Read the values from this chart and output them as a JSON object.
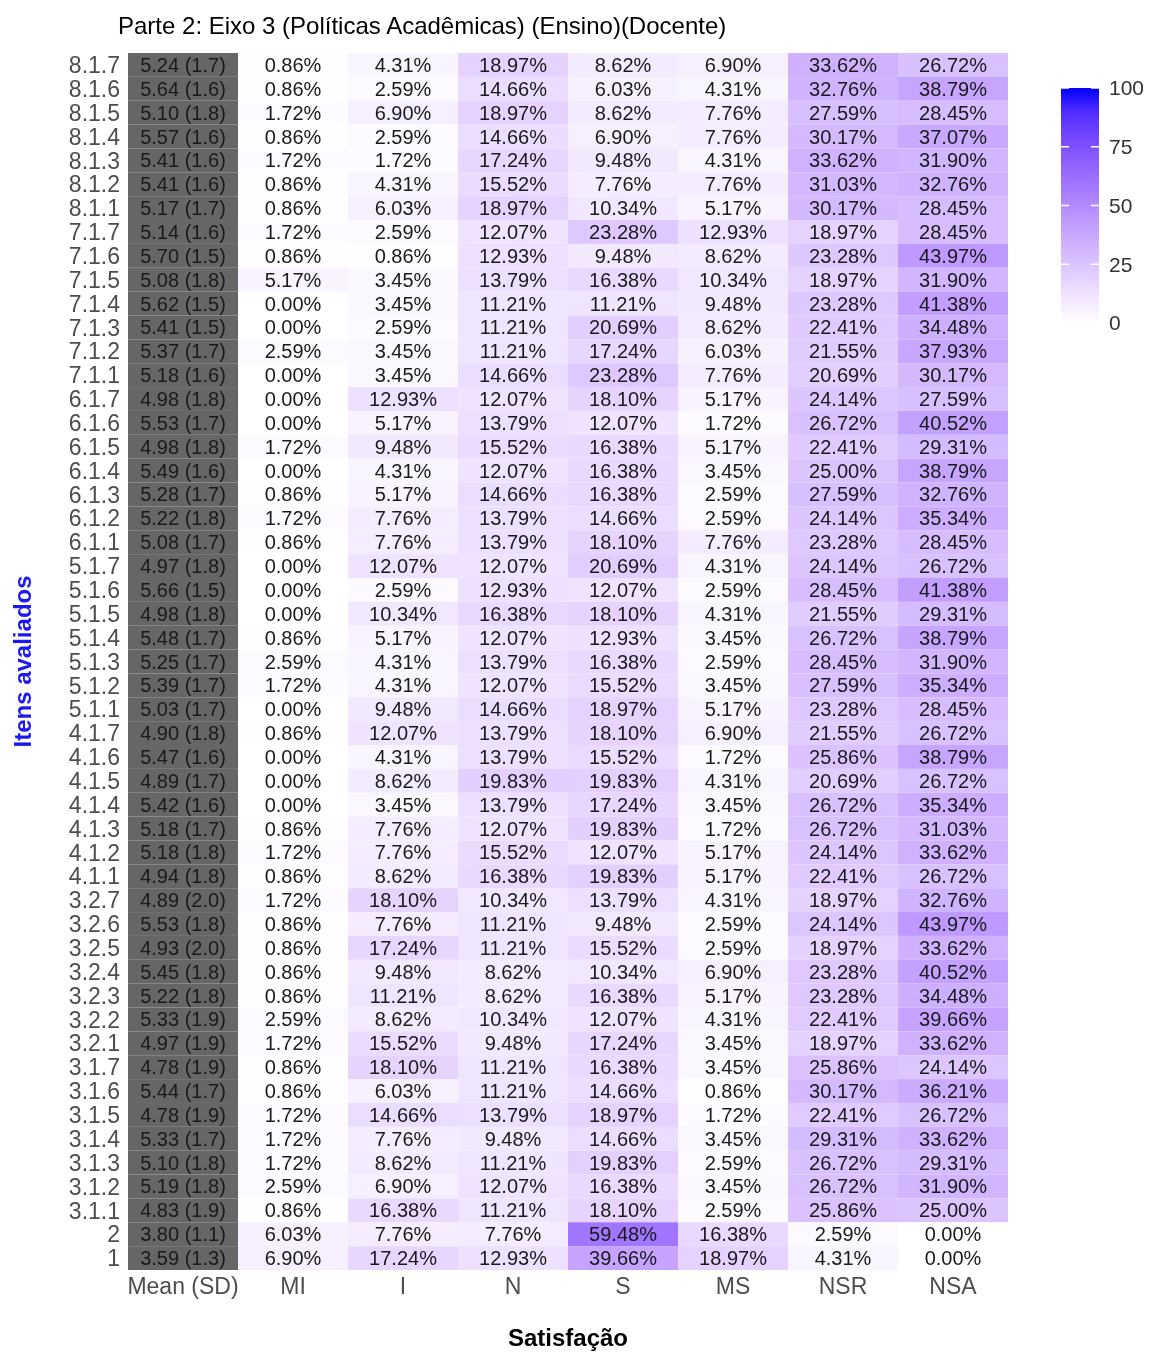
{
  "chart_data": {
    "type": "heatmap",
    "title": "Parte 2: Eixo 3 (Políticas Acadêmicas) (Ensino)(Docente)",
    "xlabel": "Satisfação",
    "ylabel": "Itens avaliados",
    "categories": [
      "Mean (SD)",
      "MI",
      "I",
      "N",
      "S",
      "MS",
      "NSR",
      "NSA"
    ],
    "y_categories": [
      "8.1.7",
      "8.1.6",
      "8.1.5",
      "8.1.4",
      "8.1.3",
      "8.1.2",
      "8.1.1",
      "7.1.7",
      "7.1.6",
      "7.1.5",
      "7.1.4",
      "7.1.3",
      "7.1.2",
      "7.1.1",
      "6.1.7",
      "6.1.6",
      "6.1.5",
      "6.1.4",
      "6.1.3",
      "6.1.2",
      "6.1.1",
      "5.1.7",
      "5.1.6",
      "5.1.5",
      "5.1.4",
      "5.1.3",
      "5.1.2",
      "5.1.1",
      "4.1.7",
      "4.1.6",
      "4.1.5",
      "4.1.4",
      "4.1.3",
      "4.1.2",
      "4.1.1",
      "3.2.7",
      "3.2.6",
      "3.2.5",
      "3.2.4",
      "3.2.3",
      "3.2.2",
      "3.2.1",
      "3.1.7",
      "3.1.6",
      "3.1.5",
      "3.1.4",
      "3.1.3",
      "3.1.2",
      "3.1.1",
      "2",
      "1"
    ],
    "cells": [
      [
        null,
        0.86,
        4.31,
        18.97,
        8.62,
        6.9,
        33.62,
        26.72
      ],
      [
        null,
        0.86,
        2.59,
        14.66,
        6.03,
        4.31,
        32.76,
        38.79
      ],
      [
        null,
        1.72,
        6.9,
        18.97,
        8.62,
        7.76,
        27.59,
        28.45
      ],
      [
        null,
        0.86,
        2.59,
        14.66,
        6.9,
        7.76,
        30.17,
        37.07
      ],
      [
        null,
        1.72,
        1.72,
        17.24,
        9.48,
        4.31,
        33.62,
        31.9
      ],
      [
        null,
        0.86,
        4.31,
        15.52,
        7.76,
        7.76,
        31.03,
        32.76
      ],
      [
        null,
        0.86,
        6.03,
        18.97,
        10.34,
        5.17,
        30.17,
        28.45
      ],
      [
        null,
        1.72,
        2.59,
        12.07,
        23.28,
        12.93,
        18.97,
        28.45
      ],
      [
        null,
        0.86,
        0.86,
        12.93,
        9.48,
        8.62,
        23.28,
        43.97
      ],
      [
        null,
        5.17,
        3.45,
        13.79,
        16.38,
        10.34,
        18.97,
        31.9
      ],
      [
        null,
        0.0,
        3.45,
        11.21,
        11.21,
        9.48,
        23.28,
        41.38
      ],
      [
        null,
        0.0,
        2.59,
        11.21,
        20.69,
        8.62,
        22.41,
        34.48
      ],
      [
        null,
        2.59,
        3.45,
        11.21,
        17.24,
        6.03,
        21.55,
        37.93
      ],
      [
        null,
        0.0,
        3.45,
        14.66,
        23.28,
        7.76,
        20.69,
        30.17
      ],
      [
        null,
        0.0,
        12.93,
        12.07,
        18.1,
        5.17,
        24.14,
        27.59
      ],
      [
        null,
        0.0,
        5.17,
        13.79,
        12.07,
        1.72,
        26.72,
        40.52
      ],
      [
        null,
        1.72,
        9.48,
        15.52,
        16.38,
        5.17,
        22.41,
        29.31
      ],
      [
        null,
        0.0,
        4.31,
        12.07,
        16.38,
        3.45,
        25.0,
        38.79
      ],
      [
        null,
        0.86,
        5.17,
        14.66,
        16.38,
        2.59,
        27.59,
        32.76
      ],
      [
        null,
        1.72,
        7.76,
        13.79,
        14.66,
        2.59,
        24.14,
        35.34
      ],
      [
        null,
        0.86,
        7.76,
        13.79,
        18.1,
        7.76,
        23.28,
        28.45
      ],
      [
        null,
        0.0,
        12.07,
        12.07,
        20.69,
        4.31,
        24.14,
        26.72
      ],
      [
        null,
        0.0,
        2.59,
        12.93,
        12.07,
        2.59,
        28.45,
        41.38
      ],
      [
        null,
        0.0,
        10.34,
        16.38,
        18.1,
        4.31,
        21.55,
        29.31
      ],
      [
        null,
        0.86,
        5.17,
        12.07,
        12.93,
        3.45,
        26.72,
        38.79
      ],
      [
        null,
        2.59,
        4.31,
        13.79,
        16.38,
        2.59,
        28.45,
        31.9
      ],
      [
        null,
        1.72,
        4.31,
        12.07,
        15.52,
        3.45,
        27.59,
        35.34
      ],
      [
        null,
        0.0,
        9.48,
        14.66,
        18.97,
        5.17,
        23.28,
        28.45
      ],
      [
        null,
        0.86,
        12.07,
        13.79,
        18.1,
        6.9,
        21.55,
        26.72
      ],
      [
        null,
        0.0,
        4.31,
        13.79,
        15.52,
        1.72,
        25.86,
        38.79
      ],
      [
        null,
        0.0,
        8.62,
        19.83,
        19.83,
        4.31,
        20.69,
        26.72
      ],
      [
        null,
        0.0,
        3.45,
        13.79,
        17.24,
        3.45,
        26.72,
        35.34
      ],
      [
        null,
        0.86,
        7.76,
        12.07,
        19.83,
        1.72,
        26.72,
        31.03
      ],
      [
        null,
        1.72,
        7.76,
        15.52,
        12.07,
        5.17,
        24.14,
        33.62
      ],
      [
        null,
        0.86,
        8.62,
        16.38,
        19.83,
        5.17,
        22.41,
        26.72
      ],
      [
        null,
        1.72,
        18.1,
        10.34,
        13.79,
        4.31,
        18.97,
        32.76
      ],
      [
        null,
        0.86,
        7.76,
        11.21,
        9.48,
        2.59,
        24.14,
        43.97
      ],
      [
        null,
        0.86,
        17.24,
        11.21,
        15.52,
        2.59,
        18.97,
        33.62
      ],
      [
        null,
        0.86,
        9.48,
        8.62,
        10.34,
        6.9,
        23.28,
        40.52
      ],
      [
        null,
        0.86,
        11.21,
        8.62,
        16.38,
        5.17,
        23.28,
        34.48
      ],
      [
        null,
        2.59,
        8.62,
        10.34,
        12.07,
        4.31,
        22.41,
        39.66
      ],
      [
        null,
        1.72,
        15.52,
        9.48,
        17.24,
        3.45,
        18.97,
        33.62
      ],
      [
        null,
        0.86,
        18.1,
        11.21,
        16.38,
        3.45,
        25.86,
        24.14
      ],
      [
        null,
        0.86,
        6.03,
        11.21,
        14.66,
        0.86,
        30.17,
        36.21
      ],
      [
        null,
        1.72,
        14.66,
        13.79,
        18.97,
        1.72,
        22.41,
        26.72
      ],
      [
        null,
        1.72,
        7.76,
        9.48,
        14.66,
        3.45,
        29.31,
        33.62
      ],
      [
        null,
        1.72,
        8.62,
        11.21,
        19.83,
        2.59,
        26.72,
        29.31
      ],
      [
        null,
        2.59,
        6.9,
        12.07,
        16.38,
        3.45,
        26.72,
        31.9
      ],
      [
        null,
        0.86,
        16.38,
        11.21,
        18.1,
        2.59,
        25.86,
        25.0
      ],
      [
        null,
        6.03,
        7.76,
        7.76,
        59.48,
        16.38,
        2.59,
        0.0
      ],
      [
        null,
        6.9,
        17.24,
        12.93,
        39.66,
        18.97,
        4.31,
        0.0
      ]
    ],
    "cell_labels": [
      [
        "5.24 (1.7)",
        "0.86%",
        "4.31%",
        "18.97%",
        "8.62%",
        "6.90%",
        "33.62%",
        "26.72%"
      ],
      [
        "5.64 (1.6)",
        "0.86%",
        "2.59%",
        "14.66%",
        "6.03%",
        "4.31%",
        "32.76%",
        "38.79%"
      ],
      [
        "5.10 (1.8)",
        "1.72%",
        "6.90%",
        "18.97%",
        "8.62%",
        "7.76%",
        "27.59%",
        "28.45%"
      ],
      [
        "5.57 (1.6)",
        "0.86%",
        "2.59%",
        "14.66%",
        "6.90%",
        "7.76%",
        "30.17%",
        "37.07%"
      ],
      [
        "5.41 (1.6)",
        "1.72%",
        "1.72%",
        "17.24%",
        "9.48%",
        "4.31%",
        "33.62%",
        "31.90%"
      ],
      [
        "5.41 (1.6)",
        "0.86%",
        "4.31%",
        "15.52%",
        "7.76%",
        "7.76%",
        "31.03%",
        "32.76%"
      ],
      [
        "5.17 (1.7)",
        "0.86%",
        "6.03%",
        "18.97%",
        "10.34%",
        "5.17%",
        "30.17%",
        "28.45%"
      ],
      [
        "5.14 (1.6)",
        "1.72%",
        "2.59%",
        "12.07%",
        "23.28%",
        "12.93%",
        "18.97%",
        "28.45%"
      ],
      [
        "5.70 (1.5)",
        "0.86%",
        "0.86%",
        "12.93%",
        "9.48%",
        "8.62%",
        "23.28%",
        "43.97%"
      ],
      [
        "5.08 (1.8)",
        "5.17%",
        "3.45%",
        "13.79%",
        "16.38%",
        "10.34%",
        "18.97%",
        "31.90%"
      ],
      [
        "5.62 (1.5)",
        "0.00%",
        "3.45%",
        "11.21%",
        "11.21%",
        "9.48%",
        "23.28%",
        "41.38%"
      ],
      [
        "5.41 (1.5)",
        "0.00%",
        "2.59%",
        "11.21%",
        "20.69%",
        "8.62%",
        "22.41%",
        "34.48%"
      ],
      [
        "5.37 (1.7)",
        "2.59%",
        "3.45%",
        "11.21%",
        "17.24%",
        "6.03%",
        "21.55%",
        "37.93%"
      ],
      [
        "5.18 (1.6)",
        "0.00%",
        "3.45%",
        "14.66%",
        "23.28%",
        "7.76%",
        "20.69%",
        "30.17%"
      ],
      [
        "4.98 (1.8)",
        "0.00%",
        "12.93%",
        "12.07%",
        "18.10%",
        "5.17%",
        "24.14%",
        "27.59%"
      ],
      [
        "5.53 (1.7)",
        "0.00%",
        "5.17%",
        "13.79%",
        "12.07%",
        "1.72%",
        "26.72%",
        "40.52%"
      ],
      [
        "4.98 (1.8)",
        "1.72%",
        "9.48%",
        "15.52%",
        "16.38%",
        "5.17%",
        "22.41%",
        "29.31%"
      ],
      [
        "5.49 (1.6)",
        "0.00%",
        "4.31%",
        "12.07%",
        "16.38%",
        "3.45%",
        "25.00%",
        "38.79%"
      ],
      [
        "5.28 (1.7)",
        "0.86%",
        "5.17%",
        "14.66%",
        "16.38%",
        "2.59%",
        "27.59%",
        "32.76%"
      ],
      [
        "5.22 (1.8)",
        "1.72%",
        "7.76%",
        "13.79%",
        "14.66%",
        "2.59%",
        "24.14%",
        "35.34%"
      ],
      [
        "5.08 (1.7)",
        "0.86%",
        "7.76%",
        "13.79%",
        "18.10%",
        "7.76%",
        "23.28%",
        "28.45%"
      ],
      [
        "4.97 (1.8)",
        "0.00%",
        "12.07%",
        "12.07%",
        "20.69%",
        "4.31%",
        "24.14%",
        "26.72%"
      ],
      [
        "5.66 (1.5)",
        "0.00%",
        "2.59%",
        "12.93%",
        "12.07%",
        "2.59%",
        "28.45%",
        "41.38%"
      ],
      [
        "4.98 (1.8)",
        "0.00%",
        "10.34%",
        "16.38%",
        "18.10%",
        "4.31%",
        "21.55%",
        "29.31%"
      ],
      [
        "5.48 (1.7)",
        "0.86%",
        "5.17%",
        "12.07%",
        "12.93%",
        "3.45%",
        "26.72%",
        "38.79%"
      ],
      [
        "5.25 (1.7)",
        "2.59%",
        "4.31%",
        "13.79%",
        "16.38%",
        "2.59%",
        "28.45%",
        "31.90%"
      ],
      [
        "5.39 (1.7)",
        "1.72%",
        "4.31%",
        "12.07%",
        "15.52%",
        "3.45%",
        "27.59%",
        "35.34%"
      ],
      [
        "5.03 (1.7)",
        "0.00%",
        "9.48%",
        "14.66%",
        "18.97%",
        "5.17%",
        "23.28%",
        "28.45%"
      ],
      [
        "4.90 (1.8)",
        "0.86%",
        "12.07%",
        "13.79%",
        "18.10%",
        "6.90%",
        "21.55%",
        "26.72%"
      ],
      [
        "5.47 (1.6)",
        "0.00%",
        "4.31%",
        "13.79%",
        "15.52%",
        "1.72%",
        "25.86%",
        "38.79%"
      ],
      [
        "4.89 (1.7)",
        "0.00%",
        "8.62%",
        "19.83%",
        "19.83%",
        "4.31%",
        "20.69%",
        "26.72%"
      ],
      [
        "5.42 (1.6)",
        "0.00%",
        "3.45%",
        "13.79%",
        "17.24%",
        "3.45%",
        "26.72%",
        "35.34%"
      ],
      [
        "5.18 (1.7)",
        "0.86%",
        "7.76%",
        "12.07%",
        "19.83%",
        "1.72%",
        "26.72%",
        "31.03%"
      ],
      [
        "5.18 (1.8)",
        "1.72%",
        "7.76%",
        "15.52%",
        "12.07%",
        "5.17%",
        "24.14%",
        "33.62%"
      ],
      [
        "4.94 (1.8)",
        "0.86%",
        "8.62%",
        "16.38%",
        "19.83%",
        "5.17%",
        "22.41%",
        "26.72%"
      ],
      [
        "4.89 (2.0)",
        "1.72%",
        "18.10%",
        "10.34%",
        "13.79%",
        "4.31%",
        "18.97%",
        "32.76%"
      ],
      [
        "5.53 (1.8)",
        "0.86%",
        "7.76%",
        "11.21%",
        "9.48%",
        "2.59%",
        "24.14%",
        "43.97%"
      ],
      [
        "4.93 (2.0)",
        "0.86%",
        "17.24%",
        "11.21%",
        "15.52%",
        "2.59%",
        "18.97%",
        "33.62%"
      ],
      [
        "5.45 (1.8)",
        "0.86%",
        "9.48%",
        "8.62%",
        "10.34%",
        "6.90%",
        "23.28%",
        "40.52%"
      ],
      [
        "5.22 (1.8)",
        "0.86%",
        "11.21%",
        "8.62%",
        "16.38%",
        "5.17%",
        "23.28%",
        "34.48%"
      ],
      [
        "5.33 (1.9)",
        "2.59%",
        "8.62%",
        "10.34%",
        "12.07%",
        "4.31%",
        "22.41%",
        "39.66%"
      ],
      [
        "4.97 (1.9)",
        "1.72%",
        "15.52%",
        "9.48%",
        "17.24%",
        "3.45%",
        "18.97%",
        "33.62%"
      ],
      [
        "4.78 (1.9)",
        "0.86%",
        "18.10%",
        "11.21%",
        "16.38%",
        "3.45%",
        "25.86%",
        "24.14%"
      ],
      [
        "5.44 (1.7)",
        "0.86%",
        "6.03%",
        "11.21%",
        "14.66%",
        "0.86%",
        "30.17%",
        "36.21%"
      ],
      [
        "4.78 (1.9)",
        "1.72%",
        "14.66%",
        "13.79%",
        "18.97%",
        "1.72%",
        "22.41%",
        "26.72%"
      ],
      [
        "5.33 (1.7)",
        "1.72%",
        "7.76%",
        "9.48%",
        "14.66%",
        "3.45%",
        "29.31%",
        "33.62%"
      ],
      [
        "5.10 (1.8)",
        "1.72%",
        "8.62%",
        "11.21%",
        "19.83%",
        "2.59%",
        "26.72%",
        "29.31%"
      ],
      [
        "5.19 (1.8)",
        "2.59%",
        "6.90%",
        "12.07%",
        "16.38%",
        "3.45%",
        "26.72%",
        "31.90%"
      ],
      [
        "4.83 (1.9)",
        "0.86%",
        "16.38%",
        "11.21%",
        "18.10%",
        "2.59%",
        "25.86%",
        "25.00%"
      ],
      [
        "3.80 (1.1)",
        "6.03%",
        "7.76%",
        "7.76%",
        "59.48%",
        "16.38%",
        "2.59%",
        "0.00%"
      ],
      [
        "3.59 (1.3)",
        "6.90%",
        "17.24%",
        "12.93%",
        "39.66%",
        "18.97%",
        "4.31%",
        "0.00%"
      ]
    ],
    "clim": [
      0,
      100
    ],
    "cticks": [
      0,
      25,
      50,
      75,
      100
    ]
  }
}
